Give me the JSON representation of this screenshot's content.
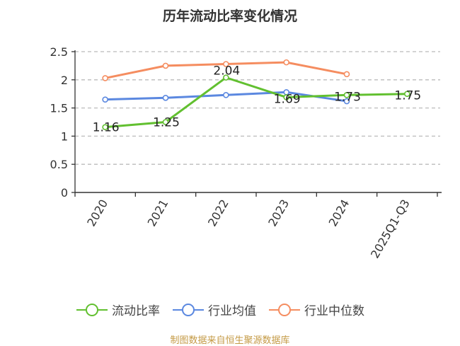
{
  "chart_data": {
    "type": "line",
    "title": "历年流动比率变化情况",
    "categories": [
      "2020",
      "2021",
      "2022",
      "2023",
      "2024",
      "2025Q1-Q3"
    ],
    "ylim": [
      0,
      2.5
    ],
    "yticks": [
      "0",
      "0.5",
      "1",
      "1.5",
      "2",
      "2.5"
    ],
    "grid": true,
    "legend_position": "bottom",
    "series": [
      {
        "name": "流动比率",
        "color": "#62c030",
        "values": [
          1.16,
          1.25,
          2.04,
          1.69,
          1.73,
          1.75
        ],
        "labels": [
          "1.16",
          "1.25",
          "2.04",
          "1.69",
          "1.73",
          "1.75"
        ]
      },
      {
        "name": "行业均值",
        "color": "#5b88e0",
        "values": [
          1.65,
          1.68,
          1.73,
          1.78,
          1.62,
          null
        ]
      },
      {
        "name": "行业中位数",
        "color": "#f58d60",
        "values": [
          2.03,
          2.25,
          2.28,
          2.31,
          2.1,
          null
        ]
      }
    ]
  },
  "footer": "制图数据来自恒生聚源数据库"
}
